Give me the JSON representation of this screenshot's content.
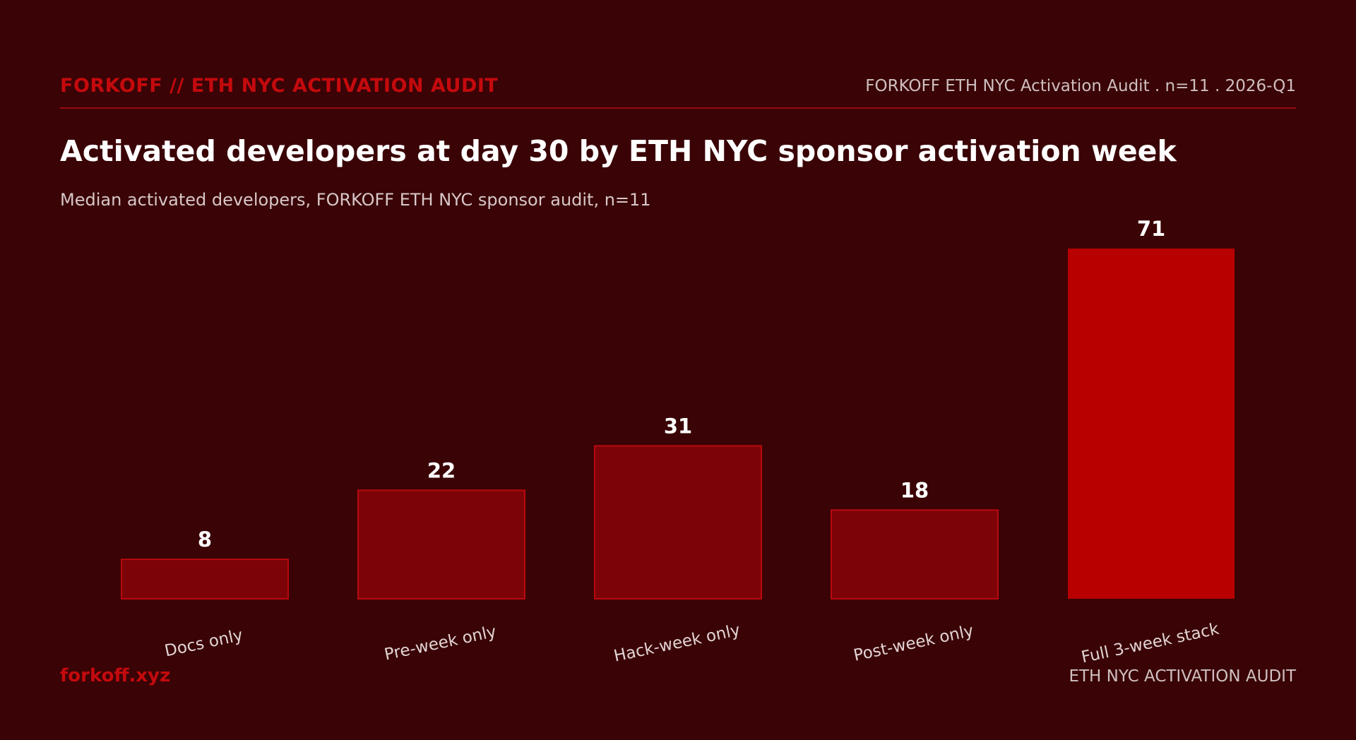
{
  "header": {
    "brand": "FORKOFF // ETH NYC ACTIVATION AUDIT",
    "meta": "FORKOFF ETH NYC Activation Audit . n=11 . 2026-Q1"
  },
  "footer": {
    "site": "forkoff.xyz",
    "label": "ETH NYC ACTIVATION AUDIT"
  },
  "colors": {
    "background": "#3a0306",
    "bar": "#7c0408",
    "bar_border": "#b8090e",
    "highlight_bar": "#b80000",
    "accent": "#c40a0d"
  },
  "chart_data": {
    "type": "bar",
    "title": "Activated developers at day 30 by ETH NYC sponsor activation week",
    "subtitle": "Median activated developers, FORKOFF ETH NYC sponsor audit, n=11",
    "categories": [
      "Docs only",
      "Pre-week only",
      "Hack-week only",
      "Post-week only",
      "Full 3-week stack"
    ],
    "values": [
      8,
      22,
      31,
      18,
      71
    ],
    "highlight_index": 4,
    "ylim": [
      0,
      71
    ],
    "grid": false,
    "axis_lines": false
  }
}
